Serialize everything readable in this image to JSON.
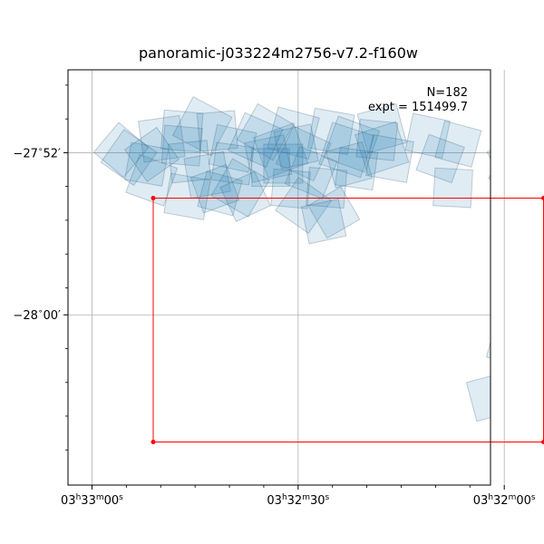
{
  "chart_data": {
    "type": "footprint-map",
    "title": "panoramic-j033224m2756-v7.2-f160w",
    "annotation": {
      "count_label": "N=182",
      "exposure_label": "expt = 151499.7"
    },
    "xaxis": {
      "unit": "RA (hours)",
      "range": [
        3.55097,
        3.53389
      ],
      "ticks": [
        {
          "value": 3.55,
          "label_parts": [
            "03",
            "h",
            "33",
            "m",
            "00",
            "s"
          ]
        },
        {
          "value": 3.541667,
          "label_parts": [
            "03",
            "h",
            "32",
            "m",
            "30",
            "s"
          ]
        },
        {
          "value": 3.533333,
          "label_parts": [
            "03",
            "h",
            "32",
            "m",
            "00",
            "s"
          ]
        }
      ],
      "minor_ticks": [
        3.548611,
        3.547222,
        3.545833,
        3.544444,
        3.543056,
        3.540278,
        3.538889,
        3.5375,
        3.536111,
        3.534722
      ]
    },
    "yaxis": {
      "unit": "Dec (degrees)",
      "range": [
        -28.14,
        -27.7985
      ],
      "ticks": [
        {
          "value": -27.866667,
          "label_parts": [
            "−27",
            "∘",
            "52",
            "′"
          ]
        },
        {
          "value": -28.0,
          "label_parts": [
            "−28",
            "∘",
            "00",
            "′"
          ]
        }
      ],
      "minor_ticks": [
        -27.8111,
        -27.8389,
        -27.8944,
        -27.9222,
        -27.95,
        -27.9778,
        -28.0278,
        -28.0556,
        -28.0833,
        -28.1111
      ]
    },
    "grid": true,
    "field_outline": {
      "color": "#ff0000",
      "corners": [
        [
          3.547525,
          -27.904
        ],
        [
          3.531744,
          -27.904
        ],
        [
          3.531744,
          -28.1046
        ],
        [
          3.547525,
          -28.1046
        ]
      ]
    },
    "footprint_style": {
      "fill": "#1f77b4",
      "fill_alpha": 0.14,
      "edge": "#33566f",
      "edge_alpha": 0.28
    },
    "footprints": [
      {
        "ra": 3.54779,
        "dec": -27.87617,
        "rot": 10,
        "size": 0.031
      },
      {
        "ra": 3.54718,
        "dec": -27.85533,
        "rot": -8,
        "size": 0.034
      },
      {
        "ra": 3.54636,
        "dec": -27.84883,
        "rot": 5,
        "size": 0.032
      },
      {
        "ra": 3.54554,
        "dec": -27.845,
        "rot": 28,
        "size": 0.036
      },
      {
        "ra": 3.54493,
        "dec": -27.84883,
        "rot": -5,
        "size": 0.031
      },
      {
        "ra": 3.54299,
        "dec": -27.84967,
        "rot": 30,
        "size": 0.034
      },
      {
        "ra": 3.54186,
        "dec": -27.8505,
        "rot": 15,
        "size": 0.035
      },
      {
        "ra": 3.54033,
        "dec": -27.84917,
        "rot": 10,
        "size": 0.033
      },
      {
        "ra": 3.53828,
        "dec": -27.84667,
        "rot": -15,
        "size": 0.033
      },
      {
        "ra": 3.53951,
        "dec": -27.85967,
        "rot": 20,
        "size": 0.036
      },
      {
        "ra": 3.54237,
        "dec": -27.86483,
        "rot": -20,
        "size": 0.035
      },
      {
        "ra": 3.54431,
        "dec": -27.86317,
        "rot": 12,
        "size": 0.033
      },
      {
        "ra": 3.54636,
        "dec": -27.86083,
        "rot": 5,
        "size": 0.031
      },
      {
        "ra": 3.54851,
        "dec": -27.8705,
        "rot": 35,
        "size": 0.033
      },
      {
        "ra": 3.54759,
        "dec": -27.88933,
        "rot": 20,
        "size": 0.033
      },
      {
        "ra": 3.54534,
        "dec": -27.885,
        "rot": -10,
        "size": 0.033
      },
      {
        "ra": 3.54431,
        "dec": -27.87567,
        "rot": 8,
        "size": 0.031
      },
      {
        "ra": 3.54288,
        "dec": -27.8715,
        "rot": -12,
        "size": 0.033
      },
      {
        "ra": 3.54145,
        "dec": -27.86733,
        "rot": 25,
        "size": 0.034
      },
      {
        "ra": 3.53971,
        "dec": -27.86433,
        "rot": 18,
        "size": 0.036
      },
      {
        "ra": 3.53828,
        "dec": -27.86317,
        "rot": -18,
        "size": 0.035
      },
      {
        "ra": 3.54114,
        "dec": -27.883,
        "rot": 22,
        "size": 0.033
      },
      {
        "ra": 3.54278,
        "dec": -27.87883,
        "rot": 0,
        "size": 0.031
      },
      {
        "ra": 3.53961,
        "dec": -27.87667,
        "rot": -15,
        "size": 0.031
      },
      {
        "ra": 3.53796,
        "dec": -27.8715,
        "rot": 10,
        "size": 0.034
      },
      {
        "ra": 3.544,
        "dec": -27.8955,
        "rot": 30,
        "size": 0.035
      },
      {
        "ra": 3.54503,
        "dec": -27.89633,
        "rot": -20,
        "size": 0.031
      },
      {
        "ra": 3.54483,
        "dec": -27.90017,
        "rot": 15,
        "size": 0.03
      },
      {
        "ra": 3.54615,
        "dec": -27.90267,
        "rot": 10,
        "size": 0.033
      },
      {
        "ra": 3.5438,
        "dec": -27.90267,
        "rot": -25,
        "size": 0.031
      },
      {
        "ra": 3.54197,
        "dec": -27.89633,
        "rot": 5,
        "size": 0.03
      },
      {
        "ra": 3.54145,
        "dec": -27.91,
        "rot": 35,
        "size": 0.033
      },
      {
        "ra": 3.54022,
        "dec": -27.91583,
        "rot": -30,
        "size": 0.031
      },
      {
        "ra": 3.54052,
        "dec": -27.8955,
        "rot": 5,
        "size": 0.031
      },
      {
        "ra": 3.54758,
        "dec": -27.86817,
        "rot": -35,
        "size": 0.032
      },
      {
        "ra": 3.54882,
        "dec": -27.86433,
        "rot": 40,
        "size": 0.032
      },
      {
        "ra": 3.53643,
        "dec": -27.85267,
        "rot": 12,
        "size": 0.031
      },
      {
        "ra": 3.5352,
        "dec": -27.8595,
        "rot": 15,
        "size": 0.031
      },
      {
        "ra": 3.53213,
        "dec": -27.86567,
        "rot": 38,
        "size": 0.034
      },
      {
        "ra": 3.53295,
        "dec": -27.874,
        "rot": -25,
        "size": 0.033
      },
      {
        "ra": 3.53541,
        "dec": -27.8955,
        "rot": 3,
        "size": 0.031
      },
      {
        "ra": 3.53285,
        "dec": -27.8835,
        "rot": 35,
        "size": 0.033
      },
      {
        "ra": 3.53592,
        "dec": -27.8715,
        "rot": 20,
        "size": 0.031
      },
      {
        "ra": 3.53306,
        "dec": -28.023,
        "rot": 15,
        "size": 0.033
      },
      {
        "ra": 3.53387,
        "dec": -28.06733,
        "rot": -15,
        "size": 0.033
      },
      {
        "ra": 3.54063,
        "dec": -27.92317,
        "rot": -12,
        "size": 0.031
      },
      {
        "ra": 3.54227,
        "dec": -27.87567,
        "rot": 0,
        "size": 0.032
      },
      {
        "ra": 3.53931,
        "dec": -27.87983,
        "rot": 8,
        "size": 0.031
      },
      {
        "ra": 3.54175,
        "dec": -27.8615,
        "rot": -12,
        "size": 0.031
      },
      {
        "ra": 3.54339,
        "dec": -27.85617,
        "rot": 24,
        "size": 0.034
      },
      {
        "ra": 3.54606,
        "dec": -27.874,
        "rot": -6,
        "size": 0.032
      },
      {
        "ra": 3.53848,
        "dec": -27.85617,
        "rot": 6,
        "size": 0.031
      }
    ]
  }
}
